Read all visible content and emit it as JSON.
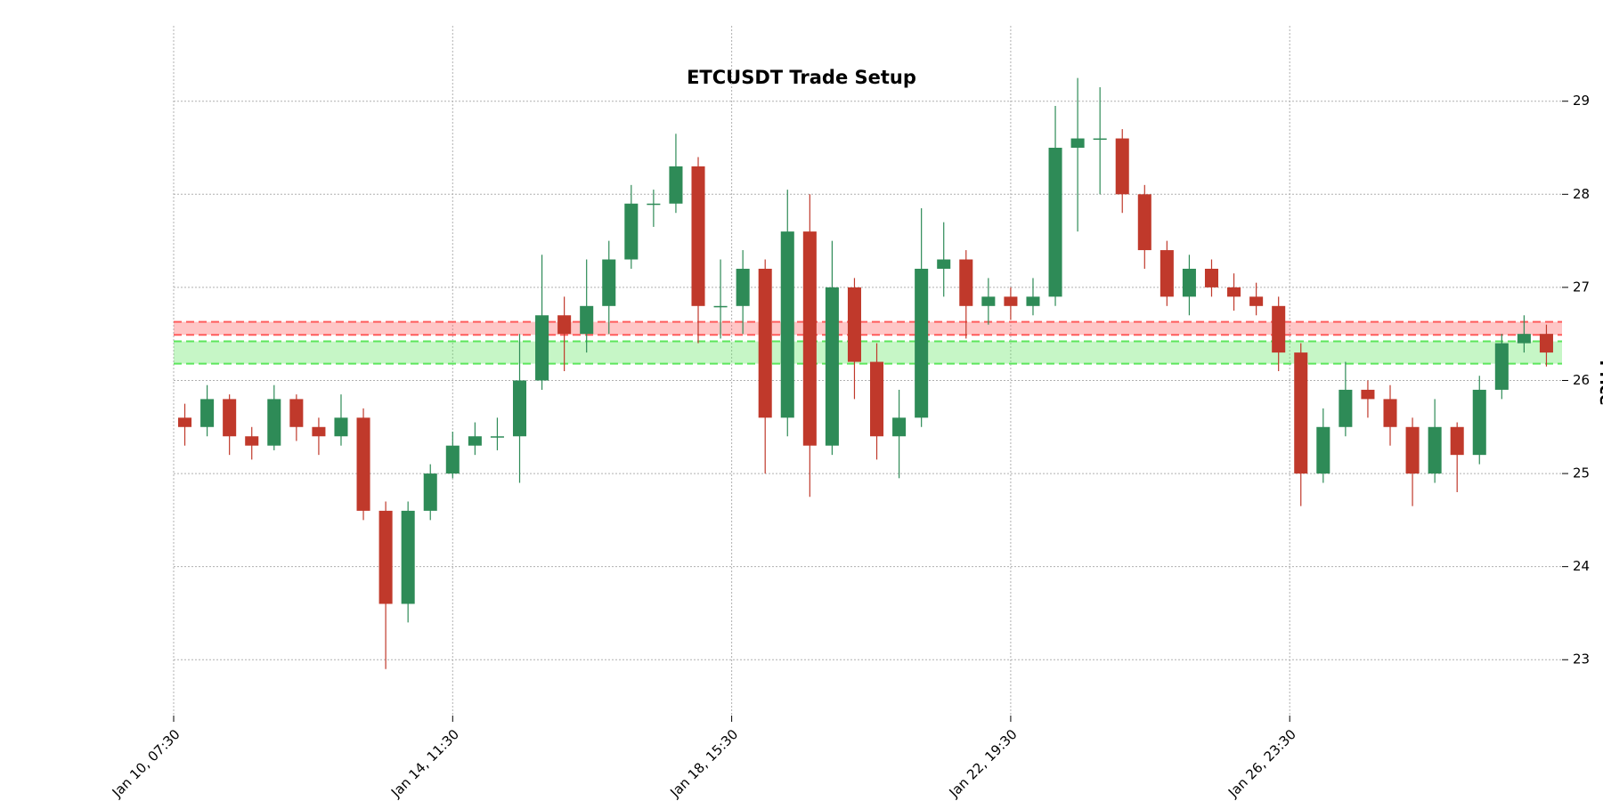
{
  "chart_data": {
    "type": "candlestick",
    "title": "ETCUSDT Trade Setup",
    "y_label": "Price",
    "y_axis_side": "right",
    "up_color": "#2e8b57",
    "down_color": "#c0392b",
    "grid": true,
    "xlim": [
      0,
      62.2
    ],
    "xticks": [
      {
        "value": 0,
        "label": "Jan 10, 07:30"
      },
      {
        "value": 12.5,
        "label": "Jan 14, 11:30"
      },
      {
        "value": 25,
        "label": "Jan 18, 15:30"
      },
      {
        "value": 37.5,
        "label": "Jan 22, 19:30"
      },
      {
        "value": 50,
        "label": "Jan 26, 23:30"
      }
    ],
    "ylim": [
      22.4,
      29.81
    ],
    "yticks": [
      23,
      24,
      25,
      26,
      27,
      28,
      29
    ],
    "open": [
      25.6,
      25.5,
      25.8,
      25.4,
      25.3,
      25.8,
      25.5,
      25.4,
      25.6,
      24.6,
      23.6,
      24.6,
      25.0,
      25.3,
      25.4,
      25.4,
      26.0,
      26.7,
      26.5,
      26.8,
      27.3,
      27.9,
      27.9,
      28.3,
      26.8,
      26.8,
      27.2,
      25.6,
      27.6,
      25.3,
      27.0,
      26.2,
      25.4,
      25.6,
      27.2,
      27.3,
      26.8,
      26.9,
      26.8,
      26.9,
      28.5,
      28.6,
      28.6,
      28.0,
      27.4,
      26.9,
      27.2,
      27.0,
      26.9,
      26.8,
      26.3,
      25.0,
      25.5,
      25.9,
      25.8,
      25.5,
      25.0,
      25.5,
      25.2,
      25.9,
      26.4,
      26.5
    ],
    "high": [
      25.75,
      25.95,
      25.85,
      25.5,
      25.95,
      25.85,
      25.6,
      25.85,
      25.7,
      24.7,
      24.7,
      25.1,
      25.45,
      25.55,
      25.6,
      26.5,
      27.35,
      26.9,
      27.3,
      27.5,
      28.1,
      28.05,
      28.65,
      28.4,
      27.3,
      27.4,
      27.3,
      28.05,
      28.0,
      27.5,
      27.1,
      26.4,
      25.9,
      27.85,
      27.7,
      27.4,
      27.1,
      27.0,
      27.1,
      28.95,
      29.25,
      29.15,
      28.7,
      28.1,
      27.5,
      27.35,
      27.3,
      27.15,
      27.05,
      26.9,
      26.4,
      25.7,
      26.2,
      26.0,
      25.95,
      25.6,
      25.8,
      25.55,
      26.05,
      26.5,
      26.7,
      26.6
    ],
    "low": [
      25.3,
      25.4,
      25.2,
      25.15,
      25.25,
      25.35,
      25.2,
      25.3,
      24.5,
      22.9,
      23.4,
      24.5,
      24.95,
      25.2,
      25.25,
      24.9,
      25.9,
      26.1,
      26.3,
      26.5,
      27.2,
      27.65,
      27.8,
      26.4,
      26.45,
      26.5,
      25.0,
      25.4,
      24.75,
      25.2,
      25.8,
      25.15,
      24.95,
      25.5,
      26.9,
      26.45,
      26.6,
      26.65,
      26.7,
      26.8,
      27.6,
      28.0,
      27.8,
      27.2,
      26.8,
      26.7,
      26.9,
      26.75,
      26.7,
      26.1,
      24.65,
      24.9,
      25.4,
      25.6,
      25.3,
      24.65,
      24.9,
      24.8,
      25.1,
      25.8,
      26.3,
      26.15
    ],
    "close": [
      25.5,
      25.8,
      25.4,
      25.3,
      25.8,
      25.5,
      25.4,
      25.6,
      24.6,
      23.6,
      24.6,
      25.0,
      25.3,
      25.4,
      25.4,
      26.0,
      26.7,
      26.5,
      26.8,
      27.3,
      27.9,
      27.9,
      28.3,
      26.8,
      26.8,
      27.2,
      25.6,
      27.6,
      25.3,
      27.0,
      26.2,
      25.4,
      25.6,
      27.2,
      27.3,
      26.8,
      26.9,
      26.8,
      26.9,
      28.5,
      28.6,
      28.6,
      28.0,
      27.4,
      26.9,
      27.2,
      27.0,
      26.9,
      26.8,
      26.3,
      25.0,
      25.5,
      25.9,
      25.8,
      25.5,
      25.0,
      25.5,
      25.2,
      25.9,
      26.4,
      26.5,
      26.3
    ],
    "zones": [
      {
        "lower": 26.49,
        "upper": 26.63,
        "color": "#ff5c5c"
      },
      {
        "lower": 26.18,
        "upper": 26.42,
        "color": "#5ce65c"
      }
    ]
  }
}
